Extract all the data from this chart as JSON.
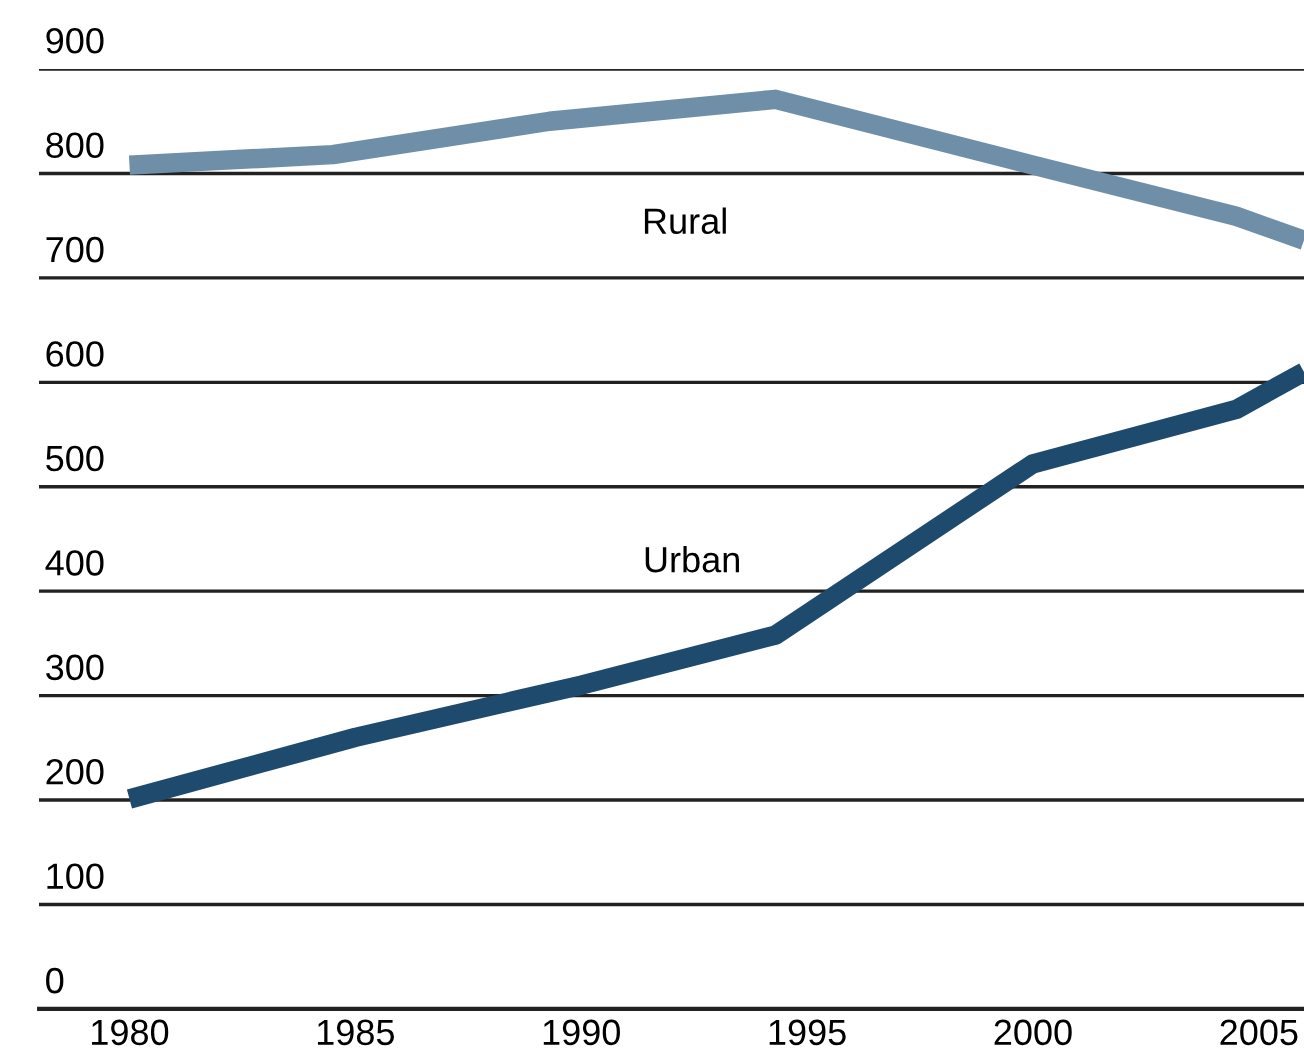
{
  "chart_data": {
    "type": "line",
    "series": [
      {
        "name": "Rural",
        "color": "#6f8fa8",
        "x": [
          1980,
          1984.5,
          1989.3,
          1994.3,
          2000,
          2004.5,
          2006
        ],
        "values": [
          808,
          818,
          850,
          871,
          808,
          759,
          736
        ]
      },
      {
        "name": "Urban",
        "color": "#1e4a6d",
        "x": [
          1980,
          1985,
          1990,
          1994.3,
          2000,
          2004.5,
          2006
        ],
        "values": [
          201,
          260,
          310,
          358,
          522,
          574,
          610
        ]
      }
    ],
    "xlim": [
      1978,
      2006
    ],
    "xticks": [
      1980,
      1985,
      1990,
      1995,
      2000,
      2005
    ],
    "ylim": [
      0,
      900
    ],
    "yticks": [
      0,
      100,
      200,
      300,
      400,
      500,
      600,
      700,
      800,
      900
    ],
    "grid": "y",
    "legend": false,
    "marker": "none",
    "line_style": "solid"
  }
}
